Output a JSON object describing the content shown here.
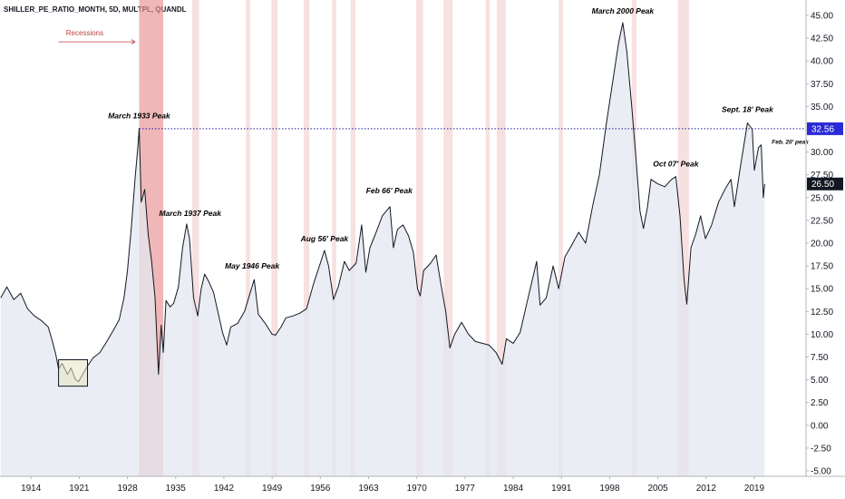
{
  "symbol_label": "SHILLER_PE_RATIO_MONTH, 5D, MULTPL, QUANDL",
  "colors": {
    "line": "#131722",
    "fill": "#e3e8f0",
    "recession": "#e8a6a6",
    "recession_main": "#e79191",
    "reference_line": "#1a1aa6",
    "ref_badge_bg": "#2b2bd6",
    "last_badge_bg": "#131722",
    "highlight_box": "#e8e6c4"
  },
  "chart_data": {
    "type": "area",
    "title": "",
    "xlabel": "",
    "ylabel": "",
    "xlim": [
      1909.5,
      2026.5
    ],
    "ylim": [
      -5.5,
      46
    ],
    "x_ticks": [
      1914,
      1921,
      1928,
      1935,
      1942,
      1949,
      1956,
      1963,
      1970,
      1977,
      1984,
      1991,
      1998,
      2005,
      2012,
      2019
    ],
    "y_ticks": [
      45.0,
      42.5,
      40.0,
      37.5,
      35.0,
      32.5,
      30.0,
      27.5,
      25.0,
      22.5,
      20.0,
      17.5,
      15.0,
      12.5,
      10.0,
      7.5,
      5.0,
      2.5,
      0.0,
      -2.5,
      -5.0
    ],
    "grid": false,
    "series": [
      {
        "points": [
          [
            1909.6,
            14.0
          ],
          [
            1910.5,
            15.2
          ],
          [
            1911.5,
            13.8
          ],
          [
            1912.5,
            14.5
          ],
          [
            1913.5,
            12.8
          ],
          [
            1914.5,
            12.0
          ],
          [
            1915.5,
            11.5
          ],
          [
            1916.5,
            10.8
          ],
          [
            1917.0,
            9.5
          ],
          [
            1917.6,
            7.8
          ],
          [
            1918.0,
            6.2
          ],
          [
            1918.5,
            6.8
          ],
          [
            1919.3,
            5.6
          ],
          [
            1919.8,
            6.3
          ],
          [
            1920.4,
            5.1
          ],
          [
            1920.9,
            4.8
          ],
          [
            1921.5,
            5.6
          ],
          [
            1922.2,
            6.5
          ],
          [
            1923.0,
            7.4
          ],
          [
            1924.0,
            8.0
          ],
          [
            1925.0,
            9.2
          ],
          [
            1926.0,
            10.5
          ],
          [
            1926.8,
            11.6
          ],
          [
            1927.5,
            14.0
          ],
          [
            1928.0,
            17.0
          ],
          [
            1928.6,
            22.0
          ],
          [
            1929.1,
            27.0
          ],
          [
            1929.5,
            30.5
          ],
          [
            1929.7,
            32.6
          ],
          [
            1930.0,
            24.5
          ],
          [
            1930.5,
            25.9
          ],
          [
            1931.0,
            21.0
          ],
          [
            1931.5,
            18.0
          ],
          [
            1932.0,
            14.0
          ],
          [
            1932.5,
            5.6
          ],
          [
            1932.9,
            11.0
          ],
          [
            1933.2,
            8.0
          ],
          [
            1933.6,
            13.7
          ],
          [
            1934.2,
            13.0
          ],
          [
            1934.7,
            13.4
          ],
          [
            1935.4,
            15.2
          ],
          [
            1936.0,
            19.5
          ],
          [
            1936.6,
            22.1
          ],
          [
            1937.0,
            20.5
          ],
          [
            1937.6,
            14.0
          ],
          [
            1938.2,
            12.0
          ],
          [
            1938.7,
            15.0
          ],
          [
            1939.2,
            16.6
          ],
          [
            1939.8,
            15.8
          ],
          [
            1940.5,
            14.6
          ],
          [
            1941.2,
            12.2
          ],
          [
            1941.8,
            10.2
          ],
          [
            1942.4,
            8.8
          ],
          [
            1943.0,
            10.8
          ],
          [
            1944.0,
            11.2
          ],
          [
            1945.0,
            12.5
          ],
          [
            1946.0,
            15.0
          ],
          [
            1946.4,
            16.0
          ],
          [
            1947.0,
            12.2
          ],
          [
            1948.0,
            11.2
          ],
          [
            1949.0,
            10.0
          ],
          [
            1949.5,
            9.9
          ],
          [
            1950.3,
            10.8
          ],
          [
            1951.0,
            11.8
          ],
          [
            1952.0,
            12.0
          ],
          [
            1953.0,
            12.3
          ],
          [
            1954.0,
            12.8
          ],
          [
            1955.0,
            15.5
          ],
          [
            1956.0,
            17.8
          ],
          [
            1956.6,
            19.2
          ],
          [
            1957.2,
            17.5
          ],
          [
            1957.9,
            13.8
          ],
          [
            1958.6,
            15.2
          ],
          [
            1959.5,
            18.0
          ],
          [
            1960.2,
            17.0
          ],
          [
            1961.2,
            17.8
          ],
          [
            1962.0,
            22.0
          ],
          [
            1962.6,
            16.8
          ],
          [
            1963.2,
            19.5
          ],
          [
            1964.0,
            21.0
          ],
          [
            1965.0,
            23.0
          ],
          [
            1966.1,
            24.0
          ],
          [
            1966.6,
            19.5
          ],
          [
            1967.2,
            21.5
          ],
          [
            1968.0,
            22.0
          ],
          [
            1968.8,
            20.8
          ],
          [
            1969.5,
            19.0
          ],
          [
            1970.1,
            15.0
          ],
          [
            1970.5,
            14.2
          ],
          [
            1971.0,
            17.0
          ],
          [
            1972.0,
            17.8
          ],
          [
            1972.8,
            18.7
          ],
          [
            1973.5,
            15.5
          ],
          [
            1974.2,
            12.5
          ],
          [
            1974.8,
            8.5
          ],
          [
            1975.5,
            10.0
          ],
          [
            1976.5,
            11.3
          ],
          [
            1977.5,
            10.0
          ],
          [
            1978.5,
            9.2
          ],
          [
            1979.5,
            9.0
          ],
          [
            1980.5,
            8.8
          ],
          [
            1981.5,
            8.0
          ],
          [
            1982.4,
            6.7
          ],
          [
            1983.0,
            9.5
          ],
          [
            1984.0,
            9.0
          ],
          [
            1985.0,
            10.2
          ],
          [
            1986.0,
            13.5
          ],
          [
            1987.4,
            18.0
          ],
          [
            1987.9,
            13.2
          ],
          [
            1988.8,
            14.0
          ],
          [
            1989.8,
            17.5
          ],
          [
            1990.6,
            15.0
          ],
          [
            1991.5,
            18.5
          ],
          [
            1992.5,
            19.8
          ],
          [
            1993.5,
            21.2
          ],
          [
            1994.5,
            20.0
          ],
          [
            1995.5,
            24.0
          ],
          [
            1996.5,
            27.5
          ],
          [
            1997.5,
            33.0
          ],
          [
            1998.5,
            38.0
          ],
          [
            1999.3,
            42.0
          ],
          [
            1999.9,
            44.2
          ],
          [
            2000.5,
            41.0
          ],
          [
            2001.2,
            35.0
          ],
          [
            2001.8,
            29.5
          ],
          [
            2002.4,
            23.5
          ],
          [
            2002.9,
            21.6
          ],
          [
            2003.5,
            24.0
          ],
          [
            2004.0,
            27.0
          ],
          [
            2005.0,
            26.5
          ],
          [
            2006.0,
            26.2
          ],
          [
            2007.0,
            27.0
          ],
          [
            2007.6,
            27.3
          ],
          [
            2008.2,
            23.0
          ],
          [
            2008.8,
            16.0
          ],
          [
            2009.2,
            13.3
          ],
          [
            2009.8,
            19.5
          ],
          [
            2010.5,
            21.0
          ],
          [
            2011.2,
            23.0
          ],
          [
            2011.9,
            20.5
          ],
          [
            2012.8,
            22.0
          ],
          [
            2013.8,
            24.5
          ],
          [
            2014.8,
            26.0
          ],
          [
            2015.6,
            27.0
          ],
          [
            2016.1,
            24.0
          ],
          [
            2017.0,
            28.5
          ],
          [
            2018.0,
            33.2
          ],
          [
            2018.7,
            32.5
          ],
          [
            2019.0,
            28.0
          ],
          [
            2019.6,
            30.5
          ],
          [
            2020.0,
            30.8
          ],
          [
            2020.3,
            25.0
          ],
          [
            2020.5,
            26.5
          ]
        ]
      }
    ],
    "recessions": [
      [
        1929.7,
        1933.2
      ],
      [
        1937.4,
        1938.4
      ],
      [
        1945.2,
        1945.8
      ],
      [
        1948.9,
        1949.8
      ],
      [
        1953.6,
        1954.4
      ],
      [
        1957.7,
        1958.3
      ],
      [
        1960.4,
        1961.1
      ],
      [
        1969.9,
        1970.9
      ],
      [
        1973.9,
        1975.2
      ],
      [
        1980.0,
        1980.6
      ],
      [
        1981.6,
        1982.9
      ],
      [
        1990.6,
        1991.2
      ],
      [
        2001.2,
        2001.9
      ],
      [
        2007.9,
        2009.5
      ]
    ],
    "main_recession": [
      1929.7,
      1933.2
    ],
    "reference_level": 32.56,
    "reference_label": "32.56",
    "last_value": 26.5,
    "last_label": "26.50",
    "highlight_box": {
      "x0": 1918.0,
      "x1": 1922.2,
      "y0": 4.3,
      "y1": 7.2
    },
    "annotations": [
      {
        "text": "March 1933 Peak",
        "x": 1929.7,
        "y": 33.7
      },
      {
        "text": "March 1937 Peak",
        "x": 1937.1,
        "y": 23.0
      },
      {
        "text": "May 1946 Peak",
        "x": 1946.1,
        "y": 17.2
      },
      {
        "text": "Aug 56' Peak",
        "x": 1956.6,
        "y": 20.2
      },
      {
        "text": "Feb  66' Peak",
        "x": 1966.0,
        "y": 25.5
      },
      {
        "text": "March 2000 Peak",
        "x": 1999.9,
        "y": 45.2
      },
      {
        "text": "Oct 07' Peak",
        "x": 2007.6,
        "y": 28.4
      },
      {
        "text": "Sept. 18' Peak",
        "x": 2018.0,
        "y": 34.4
      }
    ],
    "small_annotations": [
      {
        "text": "Feb. 20' peak",
        "x": 2024.2,
        "y": 30.9
      }
    ],
    "arrow_annotation": {
      "text": "Recessions",
      "x_text": 1921.8,
      "y_text": 42.8,
      "x0": 1918.0,
      "x1": 1929.1,
      "y": 42.1
    }
  }
}
